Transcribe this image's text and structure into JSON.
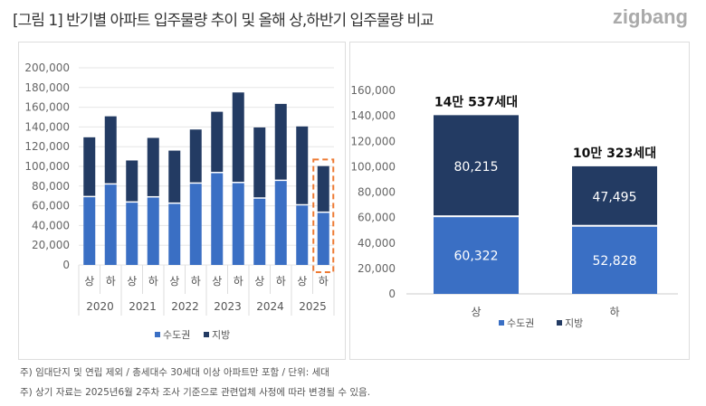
{
  "title": "[그림 1] 반기별 아파트 입주물량 추이 및 올해 상,하반기 입주물량 비교",
  "logo": "zigbang",
  "colors": {
    "capital": "#3a6fc4",
    "regional": "#233b63",
    "highlight": "#ee7a33"
  },
  "notes": [
    "주) 임대단지 및 연립 제외 / 총세대수 30세대 이상 아파트만 포함 / 단위: 세대",
    "주) 상기 자료는 2025년6월 2주차 조사 기준으로 관련업체 사정에 따라 변경될 수 있음."
  ],
  "chart_data": [
    {
      "type": "bar",
      "stacked": true,
      "ylim": [
        0,
        200000
      ],
      "yticks": [
        "0",
        "20,000",
        "40,000",
        "60,000",
        "80,000",
        "100,000",
        "120,000",
        "140,000",
        "160,000",
        "180,000",
        "200,000"
      ],
      "categories": [
        "상",
        "하",
        "상",
        "하",
        "상",
        "하",
        "상",
        "하",
        "상",
        "하",
        "상",
        "하"
      ],
      "years": [
        "2020",
        "2021",
        "2022",
        "2023",
        "2024",
        "2025"
      ],
      "legend": [
        "수도권",
        "지방"
      ],
      "legend_position": "bottom",
      "highlight_index": 11,
      "series": [
        {
          "name": "수도권",
          "values": [
            68700,
            81500,
            63200,
            68400,
            62000,
            82400,
            93100,
            83000,
            67200,
            85200,
            60322,
            52828
          ]
        },
        {
          "name": "지방",
          "values": [
            60800,
            69300,
            42800,
            60500,
            54000,
            55000,
            62300,
            92000,
            72300,
            78200,
            80215,
            47495
          ]
        }
      ]
    },
    {
      "type": "bar",
      "stacked": true,
      "ylim": [
        0,
        160000
      ],
      "yticks": [
        "0",
        "20,000",
        "40,000",
        "60,000",
        "80,000",
        "100,000",
        "120,000",
        "140,000",
        "160,000"
      ],
      "categories": [
        "상",
        "하"
      ],
      "legend": [
        "수도권",
        "지방"
      ],
      "legend_position": "bottom",
      "series": [
        {
          "name": "수도권",
          "values": [
            60322,
            52828
          ],
          "labels": [
            "60,322",
            "52,828"
          ]
        },
        {
          "name": "지방",
          "values": [
            80215,
            47495
          ],
          "labels": [
            "80,215",
            "47,495"
          ]
        }
      ],
      "totals": [
        "14만 537세대",
        "10만 323세대"
      ]
    }
  ]
}
